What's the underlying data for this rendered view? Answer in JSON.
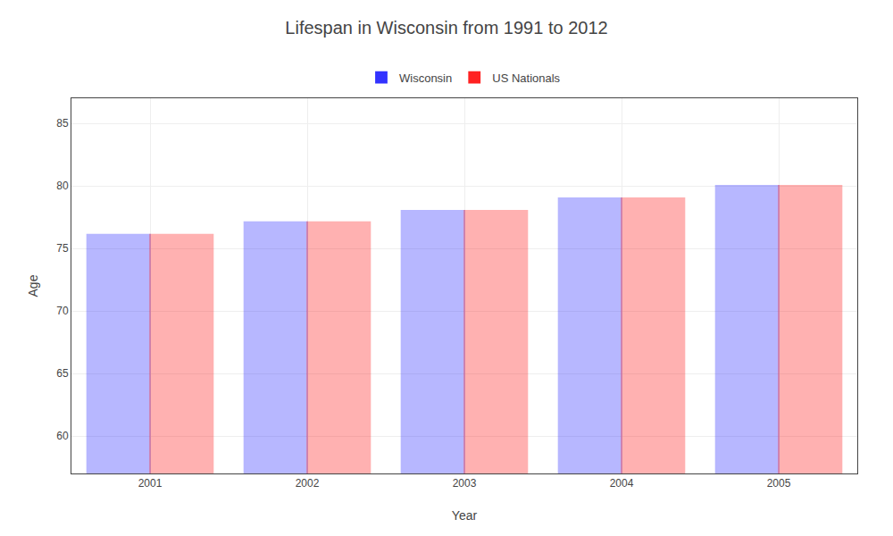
{
  "chart_data": {
    "type": "bar",
    "title": "Lifespan in Wisconsin from 1991 to 2012",
    "xlabel": "Year",
    "ylabel": "Age",
    "categories": [
      "2001",
      "2002",
      "2003",
      "2004",
      "2005"
    ],
    "series": [
      {
        "name": "Wisconsin",
        "color": "#3333ff",
        "values": [
          76.1,
          77.1,
          78.0,
          79.0,
          80.0
        ]
      },
      {
        "name": "US Nationals",
        "color": "#ff2222",
        "values": [
          76.1,
          77.1,
          78.0,
          79.0,
          80.0
        ]
      }
    ],
    "ylim": [
      57,
      87
    ],
    "yticks": [
      60,
      65,
      70,
      75,
      80,
      85
    ],
    "grid": true,
    "legend": "top"
  }
}
